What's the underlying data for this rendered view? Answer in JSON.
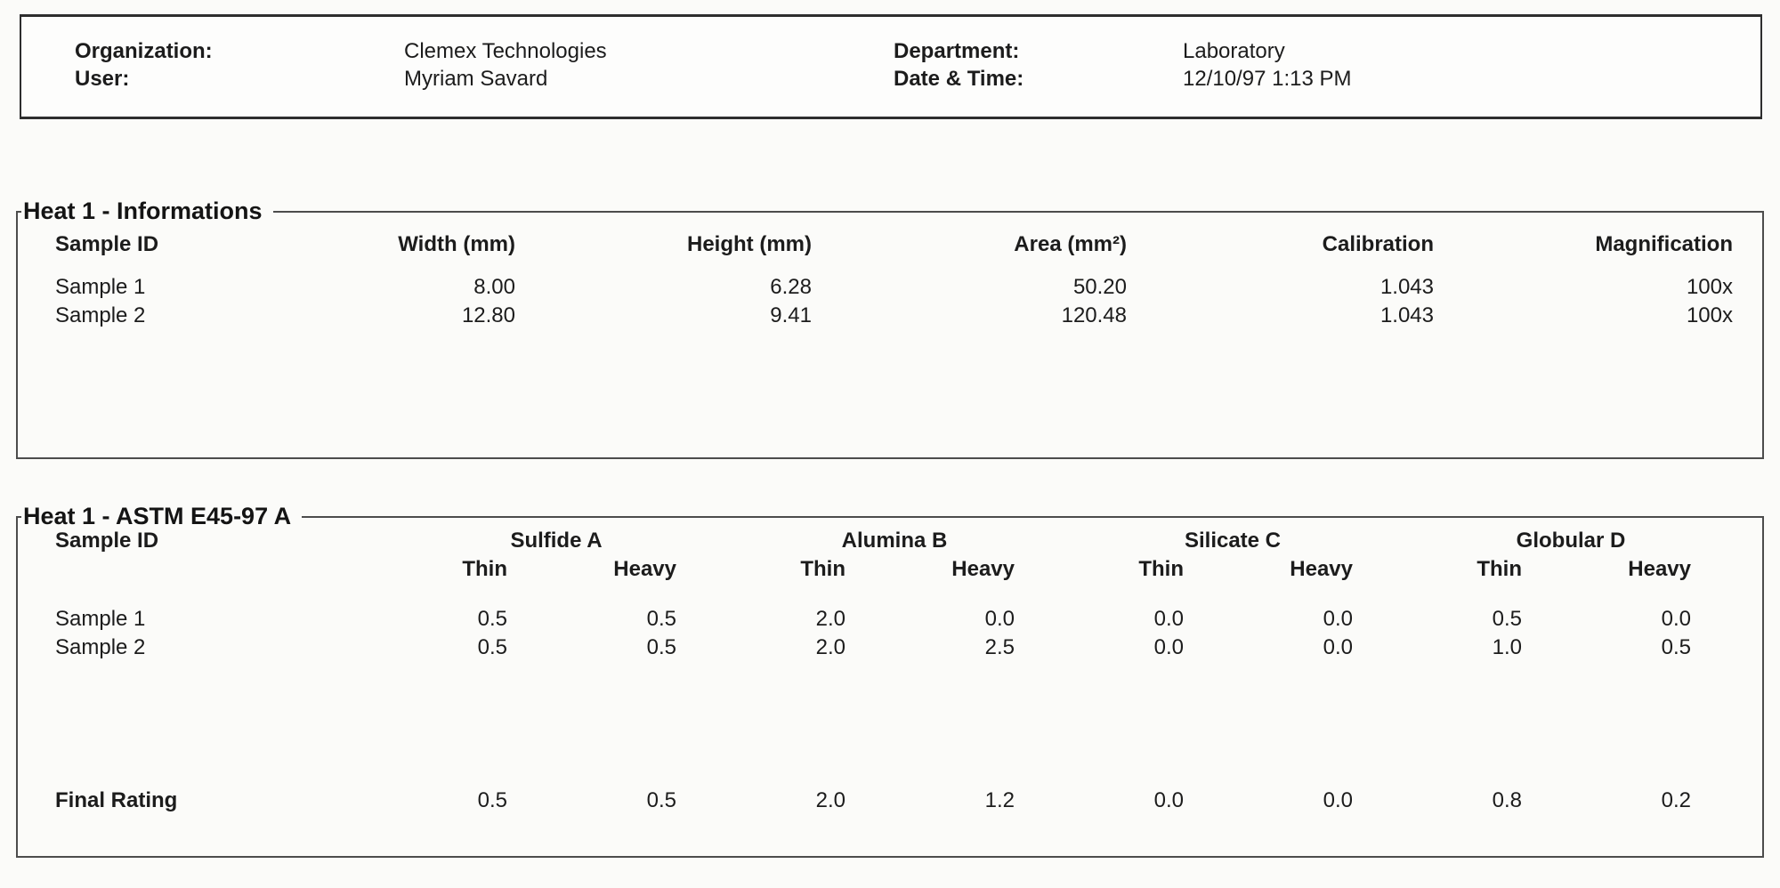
{
  "header": {
    "organization_label": "Organization:",
    "organization_value": "Clemex Technologies",
    "user_label": "User:",
    "user_value": "Myriam Savard",
    "department_label": "Department:",
    "department_value": "Laboratory",
    "datetime_label": "Date & Time:",
    "datetime_value": "12/10/97 1:13 PM"
  },
  "info": {
    "title": "Heat 1 - Informations",
    "columns": [
      "Sample ID",
      "Width (mm)",
      "Height (mm)",
      "Area (mm²)",
      "Calibration",
      "Magnification"
    ],
    "rows": [
      [
        "Sample 1",
        "8.00",
        "6.28",
        "50.20",
        "1.043",
        "100x"
      ],
      [
        "Sample 2",
        "12.80",
        "9.41",
        "120.48",
        "1.043",
        "100x"
      ]
    ]
  },
  "astm": {
    "title": "Heat 1 - ASTM E45-97 A",
    "sample_header": "Sample ID",
    "groups": [
      "Sulfide A",
      "Alumina B",
      "Silicate C",
      "Globular D"
    ],
    "sub_headers": [
      "Thin",
      "Heavy",
      "Thin",
      "Heavy",
      "Thin",
      "Heavy",
      "Thin",
      "Heavy"
    ],
    "rows": [
      {
        "label": "Sample 1",
        "values": [
          "0.5",
          "0.5",
          "2.0",
          "0.0",
          "0.0",
          "0.0",
          "0.5",
          "0.0"
        ]
      },
      {
        "label": "Sample 2",
        "values": [
          "0.5",
          "0.5",
          "2.0",
          "2.5",
          "0.0",
          "0.0",
          "1.0",
          "0.5"
        ]
      }
    ],
    "final_rating": {
      "label": "Final Rating",
      "values": [
        "0.5",
        "0.5",
        "2.0",
        "1.2",
        "0.0",
        "0.0",
        "0.8",
        "0.2"
      ]
    }
  }
}
